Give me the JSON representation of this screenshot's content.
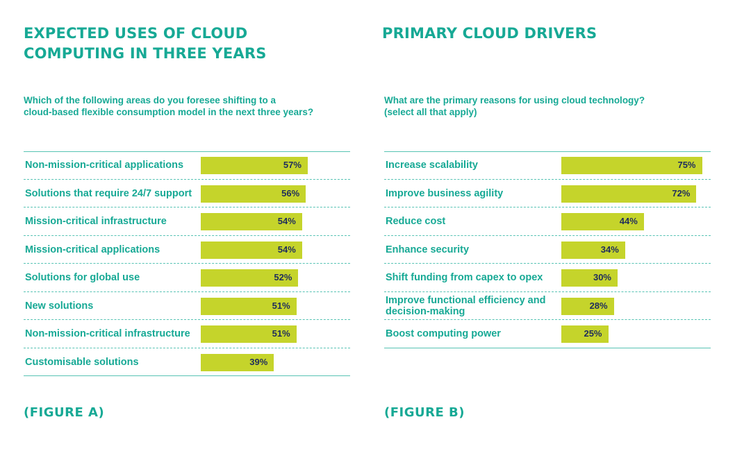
{
  "chart_data": [
    {
      "type": "bar",
      "orientation": "horizontal",
      "title": "EXPECTED USES OF CLOUD COMPUTING IN THREE YEARS",
      "question": "Which of the following areas do you foresee shifting to a\ncloud-based flexible consumption model in the next three years?",
      "figure_label": "(FIGURE A)",
      "categories": [
        "Non-mission-critical applications",
        "Solutions that require 24/7 support",
        "Mission-critical infrastructure",
        "Mission-critical applications",
        "Solutions for global use",
        "New solutions",
        "Non-mission-critical infrastructure",
        "Customisable solutions"
      ],
      "values": [
        57,
        56,
        54,
        54,
        52,
        51,
        51,
        39
      ],
      "value_labels": [
        "57%",
        "56%",
        "54%",
        "54%",
        "52%",
        "51%",
        "51%",
        "39%"
      ],
      "unit": "%",
      "xlim": [
        0,
        100
      ],
      "grid": false,
      "bar_color": "#c5d42b"
    },
    {
      "type": "bar",
      "orientation": "horizontal",
      "title": "PRIMARY CLOUD DRIVERS",
      "question": "What are the primary reasons for using cloud technology?\n(select all that apply)",
      "figure_label": "(FIGURE B)",
      "categories": [
        "Increase scalability",
        "Improve business agility",
        "Reduce cost",
        "Enhance security",
        "Shift funding from capex to opex",
        "Improve functional efficiency and decision-making",
        "Boost computing power"
      ],
      "values": [
        75,
        72,
        44,
        34,
        30,
        28,
        25
      ],
      "value_labels": [
        "75%",
        "72%",
        "44%",
        "34%",
        "30%",
        "28%",
        "25%"
      ],
      "unit": "%",
      "xlim": [
        0,
        100
      ],
      "grid": false,
      "bar_color": "#c5d42b"
    }
  ],
  "colors": {
    "accent": "#17a995",
    "bar": "#c5d42b",
    "value_text": "#1f2d5c",
    "rule": "#57c3b4"
  }
}
